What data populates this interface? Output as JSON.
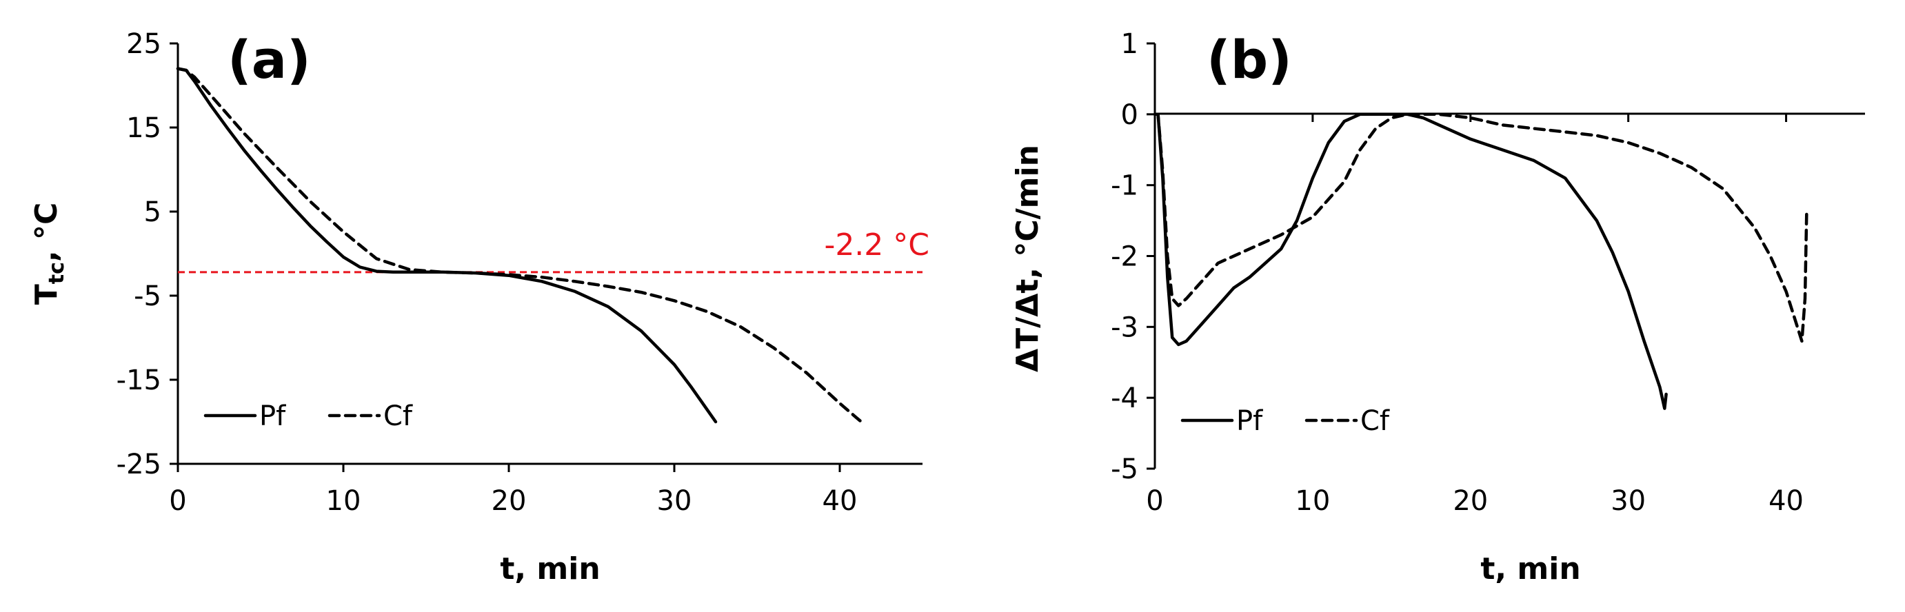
{
  "colors": {
    "reference_line": "#e8141c",
    "series": "#000000"
  },
  "chart_data": [
    {
      "type": "line",
      "panel_label": "(a)",
      "xlabel": "t, min",
      "ylabel_main": "T",
      "ylabel_sub": "tc",
      "ylabel_rest": ", °C",
      "xlim": [
        0,
        45
      ],
      "ylim": [
        -25,
        25
      ],
      "xticks": [
        0,
        10,
        20,
        30,
        40
      ],
      "yticks": [
        25,
        15,
        5,
        -5,
        -15,
        -25
      ],
      "xtick_labels": [
        "0",
        "10",
        "20",
        "30",
        "40"
      ],
      "ytick_labels": [
        "25",
        "15",
        "5",
        "-5",
        "-15",
        "-25"
      ],
      "legend_position": "bottom-left",
      "reference_line": {
        "y": -2.2,
        "label": "-2.2 °C"
      },
      "series": [
        {
          "name": "Pf",
          "style": "solid",
          "x": [
            0,
            0.5,
            1,
            2,
            3,
            4,
            5,
            6,
            7,
            8,
            9,
            10,
            11,
            12,
            13,
            14,
            16,
            18,
            20,
            22,
            24,
            26,
            28,
            30,
            31,
            32,
            32.5
          ],
          "y": [
            22,
            21.8,
            20.5,
            17.6,
            14.9,
            12.3,
            9.9,
            7.6,
            5.4,
            3.3,
            1.4,
            -0.4,
            -1.6,
            -2.1,
            -2.2,
            -2.2,
            -2.2,
            -2.3,
            -2.6,
            -3.3,
            -4.5,
            -6.3,
            -9.2,
            -13.2,
            -15.8,
            -18.6,
            -20
          ]
        },
        {
          "name": "Cf",
          "style": "dashed",
          "x": [
            0,
            0.5,
            1,
            2,
            4,
            6,
            8,
            10,
            12,
            14,
            16,
            18,
            20,
            22,
            24,
            26,
            28,
            30,
            32,
            34,
            36,
            38,
            40,
            41,
            41.3
          ],
          "y": [
            22,
            21.8,
            21,
            18.8,
            14.3,
            10.2,
            6.2,
            2.6,
            -0.6,
            -1.9,
            -2.2,
            -2.3,
            -2.5,
            -2.8,
            -3.3,
            -3.9,
            -4.6,
            -5.6,
            -6.9,
            -8.7,
            -11.2,
            -14.2,
            -17.8,
            -19.5,
            -20
          ]
        }
      ]
    },
    {
      "type": "line",
      "panel_label": "(b)",
      "xlabel": "t, min",
      "ylabel_main": "ΔT/Δt, °C/min",
      "ylabel_sub": "",
      "ylabel_rest": "",
      "xlim": [
        0,
        45
      ],
      "ylim": [
        -5,
        1
      ],
      "xticks": [
        0,
        10,
        20,
        30,
        40
      ],
      "yticks": [
        1,
        0,
        -1,
        -2,
        -3,
        -4,
        -5
      ],
      "xtick_labels": [
        "0",
        "10",
        "20",
        "30",
        "40"
      ],
      "ytick_labels": [
        "1",
        "0",
        "-1",
        "-2",
        "-3",
        "-4",
        "-5"
      ],
      "legend_position": "bottom-left",
      "series": [
        {
          "name": "Pf",
          "style": "solid",
          "x": [
            0,
            0.2,
            0.5,
            0.8,
            1.1,
            1.5,
            2,
            3,
            4,
            5,
            6,
            7,
            8,
            9,
            10,
            11,
            12,
            13,
            14,
            16,
            17,
            18,
            20,
            22,
            24,
            26,
            28,
            29,
            30,
            31,
            32,
            32.3,
            32.4
          ],
          "y": [
            0,
            0,
            -0.9,
            -2.3,
            -3.15,
            -3.25,
            -3.2,
            -2.95,
            -2.7,
            -2.45,
            -2.3,
            -2.1,
            -1.9,
            -1.5,
            -0.9,
            -0.4,
            -0.1,
            0,
            0,
            0,
            -0.05,
            -0.15,
            -0.35,
            -0.5,
            -0.65,
            -0.9,
            -1.5,
            -1.95,
            -2.5,
            -3.2,
            -3.85,
            -4.15,
            -3.95
          ]
        },
        {
          "name": "Cf",
          "style": "dashed",
          "x": [
            0,
            0.2,
            0.5,
            0.8,
            1.1,
            1.5,
            2,
            3,
            4,
            6,
            8,
            10,
            12,
            13,
            14,
            15,
            16,
            17,
            18,
            20,
            22,
            24,
            26,
            28,
            30,
            32,
            34,
            36,
            38,
            39,
            40,
            40.5,
            41,
            41.2,
            41.3
          ],
          "y": [
            0,
            0,
            -0.8,
            -2.0,
            -2.6,
            -2.7,
            -2.6,
            -2.35,
            -2.1,
            -1.9,
            -1.7,
            -1.45,
            -0.95,
            -0.5,
            -0.2,
            -0.05,
            0,
            0,
            0,
            -0.05,
            -0.15,
            -0.2,
            -0.25,
            -0.3,
            -0.4,
            -0.55,
            -0.75,
            -1.05,
            -1.6,
            -2.0,
            -2.5,
            -2.85,
            -3.2,
            -2.6,
            -1.4
          ]
        }
      ]
    }
  ]
}
